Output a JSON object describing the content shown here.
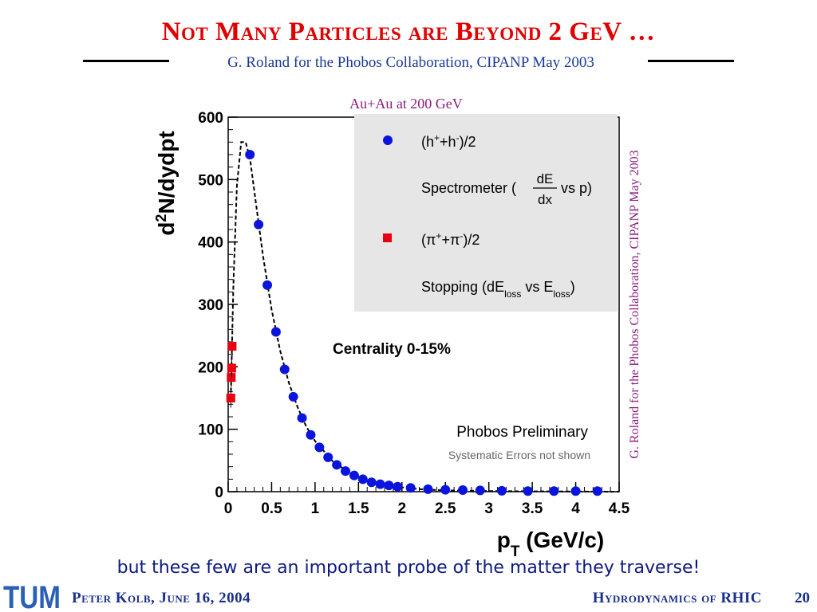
{
  "slide": {
    "title": "Not Many Particles are Beyond 2 GeV …",
    "subtitle": "G. Roland for the Phobos Collaboration, CIPANP May 2003",
    "caption": "but these few are an important probe of the matter they traverse!"
  },
  "footer": {
    "author_date": "Peter Kolb, June 16, 2004",
    "talk_title": "Hydrodynamics of RHIC",
    "page_number": "20",
    "logo_text": "TUM"
  },
  "colors": {
    "title": "#e00000",
    "subtitle": "#1a3a99",
    "footer": "#1a2f8c",
    "hadrons": "#0a14dc",
    "pions": "#e80010",
    "legend_bg": "#e6e6e6",
    "side_credit": "#8a1c7c"
  },
  "chart_data": {
    "type": "scatter",
    "title": "Au+Au at 200 GeV",
    "xlabel": "p_T (GeV/c)",
    "ylabel": "d²N/dydpt",
    "xlim": [
      0,
      4.5
    ],
    "ylim": [
      0,
      600
    ],
    "xticks": [
      "0",
      "0.5",
      "1",
      "1.5",
      "2",
      "2.5",
      "3",
      "3.5",
      "4",
      "4.5"
    ],
    "yticks": [
      "0",
      "100",
      "200",
      "300",
      "400",
      "500",
      "600"
    ],
    "grid": false,
    "legend_position": "top-right",
    "series": [
      {
        "name": "(h⁺+h⁻)/2",
        "detail": "Spectrometer (dE/dx vs p)",
        "marker": "circle",
        "color": "#0a14dc",
        "points": [
          [
            0.25,
            540
          ],
          [
            0.35,
            428
          ],
          [
            0.45,
            331
          ],
          [
            0.55,
            256
          ],
          [
            0.65,
            196
          ],
          [
            0.75,
            152
          ],
          [
            0.85,
            118
          ],
          [
            0.95,
            91
          ],
          [
            1.05,
            71
          ],
          [
            1.15,
            55
          ],
          [
            1.25,
            43
          ],
          [
            1.35,
            33
          ],
          [
            1.45,
            26
          ],
          [
            1.55,
            20
          ],
          [
            1.65,
            15
          ],
          [
            1.75,
            12
          ],
          [
            1.85,
            10
          ],
          [
            1.95,
            8
          ],
          [
            2.1,
            6
          ],
          [
            2.3,
            4
          ],
          [
            2.5,
            3
          ],
          [
            2.7,
            2.5
          ],
          [
            2.9,
            2
          ],
          [
            3.15,
            1.5
          ],
          [
            3.45,
            1
          ],
          [
            3.75,
            1
          ],
          [
            4.0,
            1
          ],
          [
            4.25,
            1
          ]
        ]
      },
      {
        "name": "(π⁺+π⁻)/2",
        "detail": "Stopping (dE_loss vs E_loss)",
        "marker": "square",
        "color": "#e80010",
        "points": [
          [
            0.03,
            150
          ],
          [
            0.035,
            183
          ],
          [
            0.04,
            198
          ],
          [
            0.045,
            233
          ]
        ]
      }
    ],
    "fit_curve": [
      [
        0.03,
        150
      ],
      [
        0.06,
        330
      ],
      [
        0.1,
        490
      ],
      [
        0.15,
        560
      ],
      [
        0.2,
        560
      ],
      [
        0.25,
        535
      ],
      [
        0.3,
        482
      ],
      [
        0.4,
        378
      ],
      [
        0.5,
        292
      ],
      [
        0.6,
        225
      ],
      [
        0.7,
        174
      ],
      [
        0.8,
        135
      ],
      [
        0.9,
        104
      ],
      [
        1.0,
        81
      ],
      [
        1.2,
        49
      ],
      [
        1.4,
        30
      ],
      [
        1.6,
        18
      ],
      [
        1.8,
        11
      ],
      [
        2.0,
        7
      ],
      [
        2.2,
        4
      ],
      [
        2.5,
        2
      ],
      [
        3.0,
        1
      ],
      [
        3.5,
        0.5
      ],
      [
        4.5,
        0
      ]
    ],
    "annotations": {
      "centrality": "Centrality 0-15%",
      "preliminary": "Phobos Preliminary",
      "systematics": "Systematic Errors not shown",
      "side_credit": "G. Roland for the Phobos Collaboration, CIPANP May 2003"
    }
  }
}
